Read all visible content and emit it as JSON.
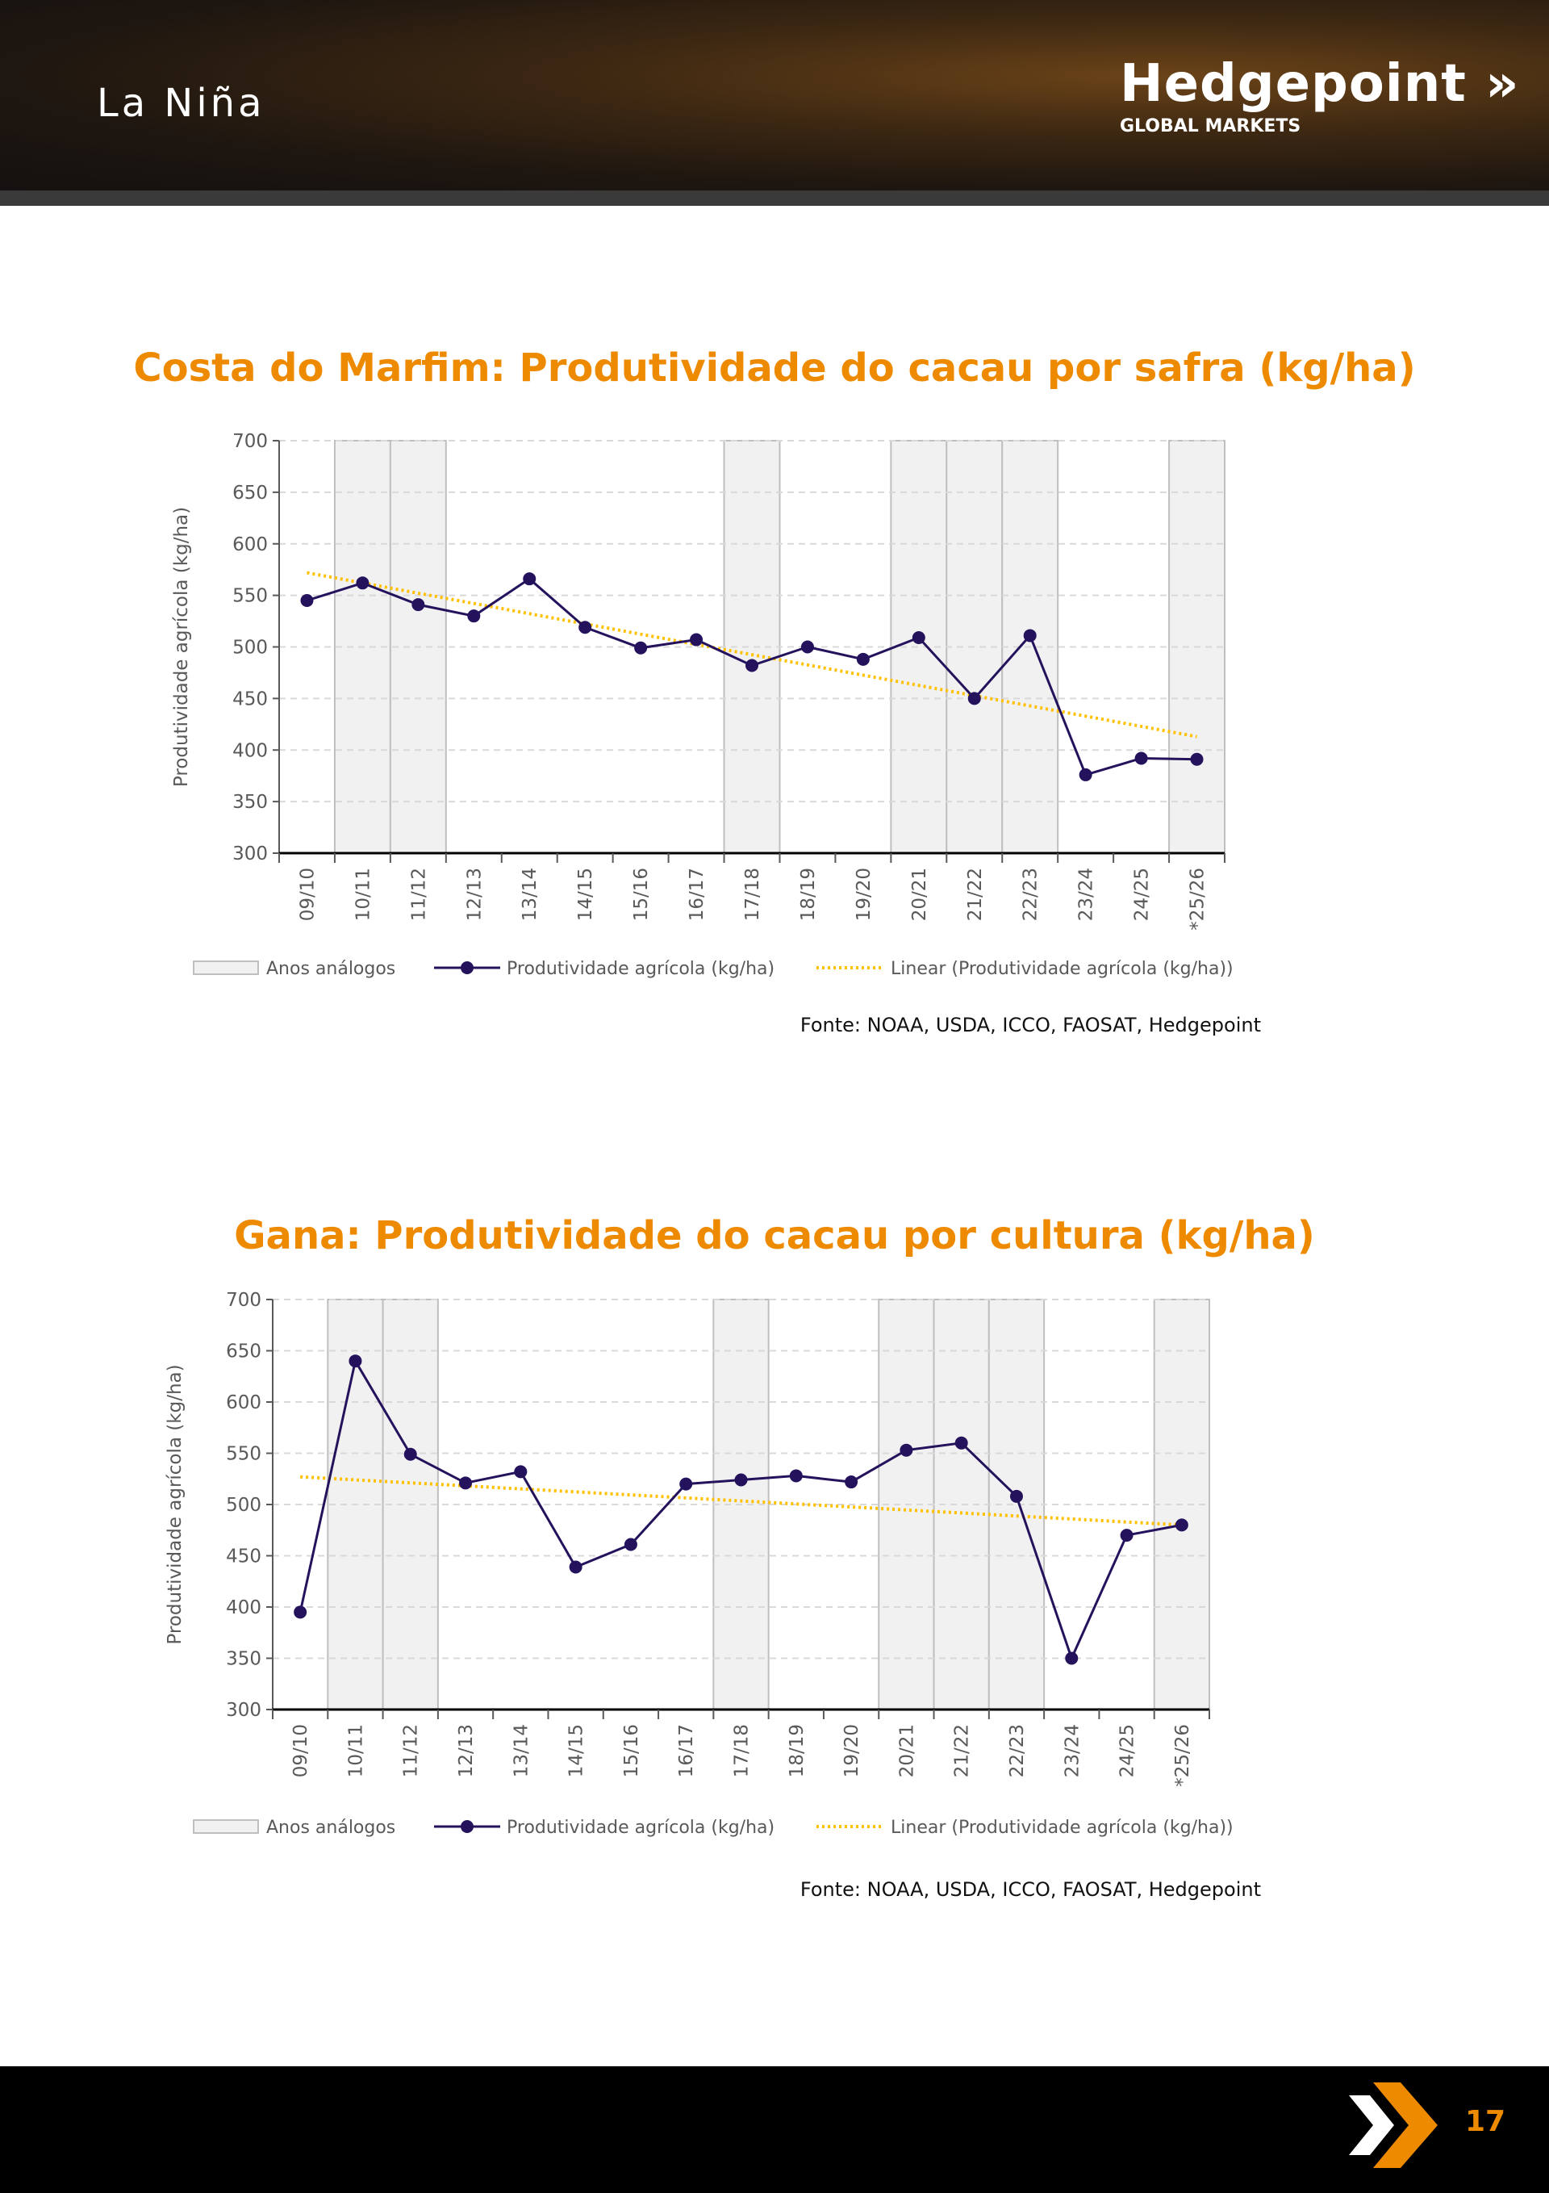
{
  "header": {
    "title": "La Niña",
    "logo_name": "Hedgepoint",
    "logo_sub": "GLOBAL MARKETS"
  },
  "footer": {
    "page_number": "17"
  },
  "colors": {
    "accent": "#ee8a00",
    "series": "#24125c",
    "trend": "#ffc000",
    "analog": "#f1f1f1"
  },
  "chart_data": [
    {
      "type": "line",
      "title": "Costa do Marfim: Produtividade do cacau por safra (kg/ha)",
      "ylabel": "Produtividade agrícola (kg/ha)",
      "xlabel": "",
      "ylim": [
        300,
        700
      ],
      "yticks": [
        300,
        350,
        400,
        450,
        500,
        550,
        600,
        650,
        700
      ],
      "categories": [
        "09/10",
        "10/11",
        "11/12",
        "12/13",
        "13/14",
        "14/15",
        "15/16",
        "16/17",
        "17/18",
        "18/19",
        "19/20",
        "20/21",
        "21/22",
        "22/23",
        "23/24",
        "24/25",
        "*25/26"
      ],
      "analog_years": [
        "10/11",
        "11/12",
        "17/18",
        "20/21",
        "21/22",
        "22/23",
        "*25/26"
      ],
      "series": [
        {
          "name": "Produtividade agrícola (kg/ha)",
          "values": [
            545,
            562,
            541,
            530,
            566,
            519,
            499,
            507,
            482,
            500,
            488,
            509,
            450,
            511,
            376,
            392,
            391
          ]
        }
      ],
      "trend": {
        "name": "Linear (Produtividade agrícola (kg/ha))",
        "start": 572,
        "end": 413
      },
      "legend": {
        "analog_label": "Anos análogos",
        "placement": "bottom"
      },
      "grid": true,
      "source": "Fonte: NOAA, USDA, ICCO, FAOSAT, Hedgepoint"
    },
    {
      "type": "line",
      "title": "Gana: Produtividade do cacau por cultura (kg/ha)",
      "ylabel": "Produtividade agrícola (kg/ha)",
      "xlabel": "",
      "ylim": [
        300,
        700
      ],
      "yticks": [
        300,
        350,
        400,
        450,
        500,
        550,
        600,
        650,
        700
      ],
      "categories": [
        "09/10",
        "10/11",
        "11/12",
        "12/13",
        "13/14",
        "14/15",
        "15/16",
        "16/17",
        "17/18",
        "18/19",
        "19/20",
        "20/21",
        "21/22",
        "22/23",
        "23/24",
        "24/25",
        "*25/26"
      ],
      "analog_years": [
        "10/11",
        "11/12",
        "17/18",
        "20/21",
        "21/22",
        "22/23",
        "*25/26"
      ],
      "series": [
        {
          "name": "Produtividade agrícola (kg/ha)",
          "values": [
            395,
            640,
            549,
            521,
            532,
            439,
            461,
            520,
            524,
            528,
            522,
            553,
            560,
            508,
            350,
            470,
            480
          ]
        }
      ],
      "trend": {
        "name": "Linear (Produtividade agrícola (kg/ha))",
        "start": 527,
        "end": 480
      },
      "legend": {
        "analog_label": "Anos análogos",
        "placement": "bottom"
      },
      "grid": true,
      "source": "Fonte: NOAA, USDA, ICCO, FAOSAT, Hedgepoint"
    }
  ]
}
